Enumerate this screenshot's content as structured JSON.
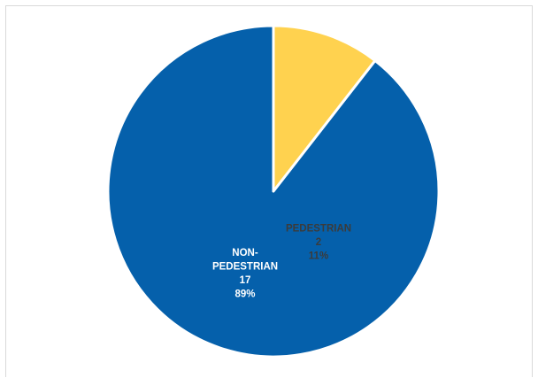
{
  "chart_data": {
    "type": "pie",
    "title": "",
    "slices": [
      {
        "label": "PEDESTRIAN",
        "value": 2,
        "percent": "11%",
        "color": "#FFD24F",
        "label_color": "#3B3B3B"
      },
      {
        "label": "NON-PEDESTRIAN",
        "label_lines": [
          "NON-",
          "PEDESTRIAN"
        ],
        "value": 17,
        "percent": "89%",
        "color": "#0560AB",
        "label_color": "#FFFFFF"
      }
    ],
    "legend": "none",
    "slice_border_color": "#FFFFFF"
  }
}
